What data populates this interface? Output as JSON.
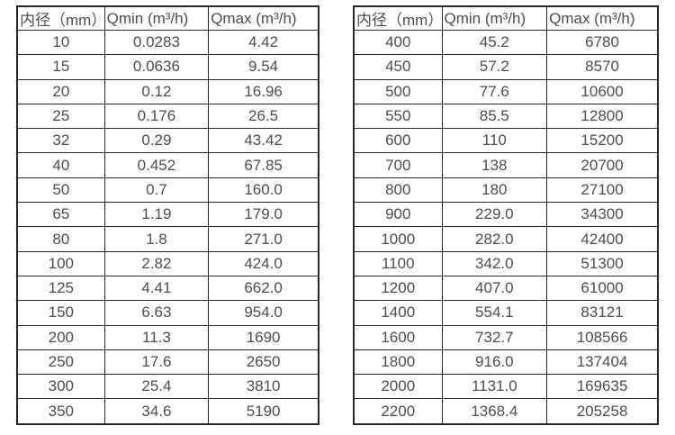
{
  "page": {
    "background_color": "#ffffff",
    "border_color": "#262626",
    "text_color": "#4d4d4d"
  },
  "tables": [
    {
      "name": "flow-table-small-diameters",
      "headers": [
        "内径（mm）",
        "Qmin (m³/h)",
        "Qmax (m³/h)"
      ],
      "rows": [
        [
          "10",
          "0.0283",
          "4.42"
        ],
        [
          "15",
          "0.0636",
          "9.54"
        ],
        [
          "20",
          "0.12",
          "16.96"
        ],
        [
          "25",
          "0.176",
          "26.5"
        ],
        [
          "32",
          "0.29",
          "43.42"
        ],
        [
          "40",
          "0.452",
          "67.85"
        ],
        [
          "50",
          "0.7",
          "160.0"
        ],
        [
          "65",
          "1.19",
          "179.0"
        ],
        [
          "80",
          "1.8",
          "271.0"
        ],
        [
          "100",
          "2.82",
          "424.0"
        ],
        [
          "125",
          "4.41",
          "662.0"
        ],
        [
          "150",
          "6.63",
          "954.0"
        ],
        [
          "200",
          "11.3",
          "1690"
        ],
        [
          "250",
          "17.6",
          "2650"
        ],
        [
          "300",
          "25.4",
          "3810"
        ],
        [
          "350",
          "34.6",
          "5190"
        ]
      ]
    },
    {
      "name": "flow-table-large-diameters",
      "headers": [
        "内径（mm）",
        "Qmin (m³/h)",
        "Qmax (m³/h)"
      ],
      "rows": [
        [
          "400",
          "45.2",
          "6780"
        ],
        [
          "450",
          "57.2",
          "8570"
        ],
        [
          "500",
          "77.6",
          "10600"
        ],
        [
          "550",
          "85.5",
          "12800"
        ],
        [
          "600",
          "110",
          "15200"
        ],
        [
          "700",
          "138",
          "20700"
        ],
        [
          "800",
          "180",
          "27100"
        ],
        [
          "900",
          "229.0",
          "34300"
        ],
        [
          "1000",
          "282.0",
          "42400"
        ],
        [
          "1100",
          "342.0",
          "51300"
        ],
        [
          "1200",
          "407.0",
          "61000"
        ],
        [
          "1400",
          "554.1",
          "83121"
        ],
        [
          "1600",
          "732.7",
          "108566"
        ],
        [
          "1800",
          "916.0",
          "137404"
        ],
        [
          "2000",
          "1131.0",
          "169635"
        ],
        [
          "2200",
          "1368.4",
          "205258"
        ]
      ]
    }
  ]
}
